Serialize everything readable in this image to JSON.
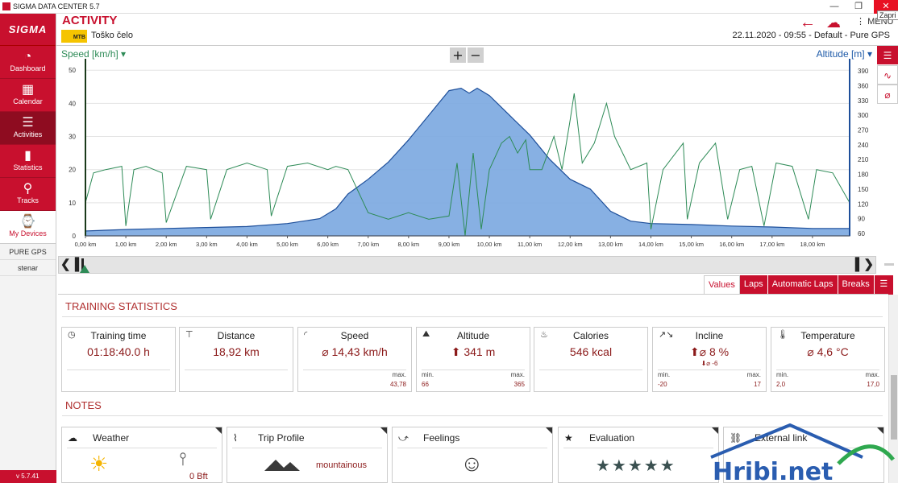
{
  "window": {
    "title": "SIGMA DATA CENTER 5.7",
    "tooltip": "Zapri",
    "min": "—",
    "restore": "❐",
    "close": "✕"
  },
  "sidebar": {
    "logo": "SIGMA",
    "items": [
      {
        "label": "Dashboard",
        "icon": "◔"
      },
      {
        "label": "Calendar",
        "icon": "▦"
      },
      {
        "label": "Activities",
        "icon": "☰"
      },
      {
        "label": "Statistics",
        "icon": "▮"
      },
      {
        "label": "Tracks",
        "icon": "⚲"
      }
    ],
    "devices_label": "My Devices",
    "device_name": "PURE GPS",
    "user": "stenar",
    "version": "v 5.7.41"
  },
  "header": {
    "title": "ACTIVITY",
    "badge": "MTB",
    "activity_name": "Toško čelo",
    "date": "22.11.2020",
    "time": "09:55",
    "profile": "Default",
    "device": "Pure GPS",
    "meta_sep": " - ",
    "menu_label": "MENU"
  },
  "chart_controls": {
    "left_axis": "Speed [km/h]",
    "right_axis": "Altitude [m]",
    "zoom_in": "+",
    "zoom_out": "−"
  },
  "chart_data": {
    "type": "line",
    "x_unit": "km",
    "x_ticks": [
      "0,00 km",
      "1,00 km",
      "2,00 km",
      "3,00 km",
      "4,00 km",
      "5,00 km",
      "6,00 km",
      "7,00 km",
      "8,00 km",
      "9,00 km",
      "10,00 km",
      "11,00 km",
      "12,00 km",
      "13,00 km",
      "14,00 km",
      "15,00 km",
      "16,00 km",
      "17,00 km",
      "18,00 km"
    ],
    "xlim": [
      0,
      18.92
    ],
    "left_axis": {
      "label": "Speed [km/h]",
      "ticks": [
        0,
        10,
        20,
        30,
        40,
        50
      ],
      "ylim": [
        0,
        52
      ]
    },
    "right_axis": {
      "label": "Altitude [m]",
      "ticks": [
        60,
        90,
        120,
        150,
        180,
        210,
        240,
        270,
        300,
        330,
        360,
        390
      ],
      "ylim": [
        55,
        405
      ]
    },
    "altitude": {
      "x": [
        0,
        1,
        2,
        3,
        4,
        5,
        5.8,
        6.2,
        6.5,
        7,
        7.5,
        8,
        8.5,
        8.8,
        9.0,
        9.3,
        9.5,
        9.7,
        10.0,
        10.5,
        11,
        11.5,
        12,
        12.5,
        13,
        13.5,
        14,
        15,
        16,
        17,
        18,
        18.92
      ],
      "y": [
        65,
        68,
        70,
        72,
        74,
        80,
        90,
        110,
        140,
        170,
        205,
        250,
        300,
        330,
        350,
        355,
        345,
        355,
        340,
        300,
        260,
        210,
        170,
        150,
        105,
        85,
        80,
        78,
        75,
        73,
        70,
        70
      ]
    },
    "speed": {
      "x": [
        0,
        0.2,
        0.5,
        0.9,
        1.0,
        1.2,
        1.5,
        1.9,
        2.0,
        2.5,
        3.0,
        3.1,
        3.5,
        4.0,
        4.5,
        4.6,
        5.0,
        5.5,
        6.0,
        6.2,
        6.5,
        7.0,
        7.5,
        8.0,
        8.5,
        9.0,
        9.2,
        9.4,
        9.6,
        9.8,
        10.0,
        10.3,
        10.5,
        10.7,
        10.9,
        11.0,
        11.3,
        11.6,
        11.8,
        12.0,
        12.1,
        12.3,
        12.6,
        12.9,
        13.1,
        13.5,
        13.9,
        14.0,
        14.3,
        14.8,
        14.9,
        15.2,
        15.6,
        15.9,
        16.2,
        16.5,
        16.8,
        17.1,
        17.5,
        17.9,
        18.1,
        18.5,
        18.92
      ],
      "y": [
        10,
        19,
        20,
        21,
        3,
        20,
        21,
        19,
        4,
        21,
        20,
        5,
        20,
        22,
        20,
        6,
        21,
        22,
        20,
        21,
        20,
        7,
        5,
        7,
        5,
        6,
        22,
        0,
        25,
        2,
        20,
        28,
        30,
        25,
        29,
        20,
        20,
        30,
        20,
        35,
        43,
        22,
        28,
        40,
        30,
        20,
        22,
        2,
        20,
        28,
        5,
        22,
        28,
        5,
        20,
        21,
        3,
        22,
        21,
        5,
        20,
        19,
        10
      ]
    }
  },
  "tabs": [
    {
      "label": "Values",
      "active": true
    },
    {
      "label": "Laps",
      "active": false
    },
    {
      "label": "Automatic Laps",
      "active": false
    },
    {
      "label": "Breaks",
      "active": false
    }
  ],
  "training_stats": {
    "title": "TRAINING STATISTICS",
    "cards": [
      {
        "label": "Training time",
        "icon": "◷",
        "value": "01:18:40.0 h"
      },
      {
        "label": "Distance",
        "icon": "⊤",
        "value": "18,92 km"
      },
      {
        "label": "Speed",
        "icon": "◜",
        "value": "⌀ 14,43 km/h",
        "max_label": "max.",
        "max": "43,78"
      },
      {
        "label": "Altitude",
        "icon": "⛰",
        "value": "⬆ 341 m",
        "min_label": "min.",
        "min": "66",
        "max_label": "max.",
        "max": "365"
      },
      {
        "label": "Calories",
        "icon": "♨",
        "value": "546 kcal"
      },
      {
        "label": "Incline",
        "icon": "↗↘",
        "value": "⬆⌀ 8 %",
        "sub": "⬇⌀  -6",
        "min_label": "min.",
        "min": "-20",
        "max_label": "max.",
        "max": "17"
      },
      {
        "label": "Temperature",
        "icon": "🌡",
        "value": "⌀ 4,6 °C",
        "min_label": "min.",
        "min": "2,0",
        "max_label": "max.",
        "max": "17,0"
      }
    ]
  },
  "notes": {
    "title": "NOTES",
    "cards": [
      {
        "label": "Weather",
        "icon": "☁",
        "wind": "0 Bft"
      },
      {
        "label": "Trip Profile",
        "icon": "⌇",
        "value": "mountainous"
      },
      {
        "label": "Feelings",
        "icon": "⤻",
        "value": "☺"
      },
      {
        "label": "Evaluation",
        "icon": "★",
        "value": "★★★★★"
      },
      {
        "label": "External link",
        "icon": "⛓"
      }
    ]
  },
  "watermark": {
    "text": "Hribi.net"
  },
  "colors": {
    "brand": "#c8102e",
    "altitude_fill": "#7aa7e0",
    "speed_line": "#2e8b57"
  }
}
